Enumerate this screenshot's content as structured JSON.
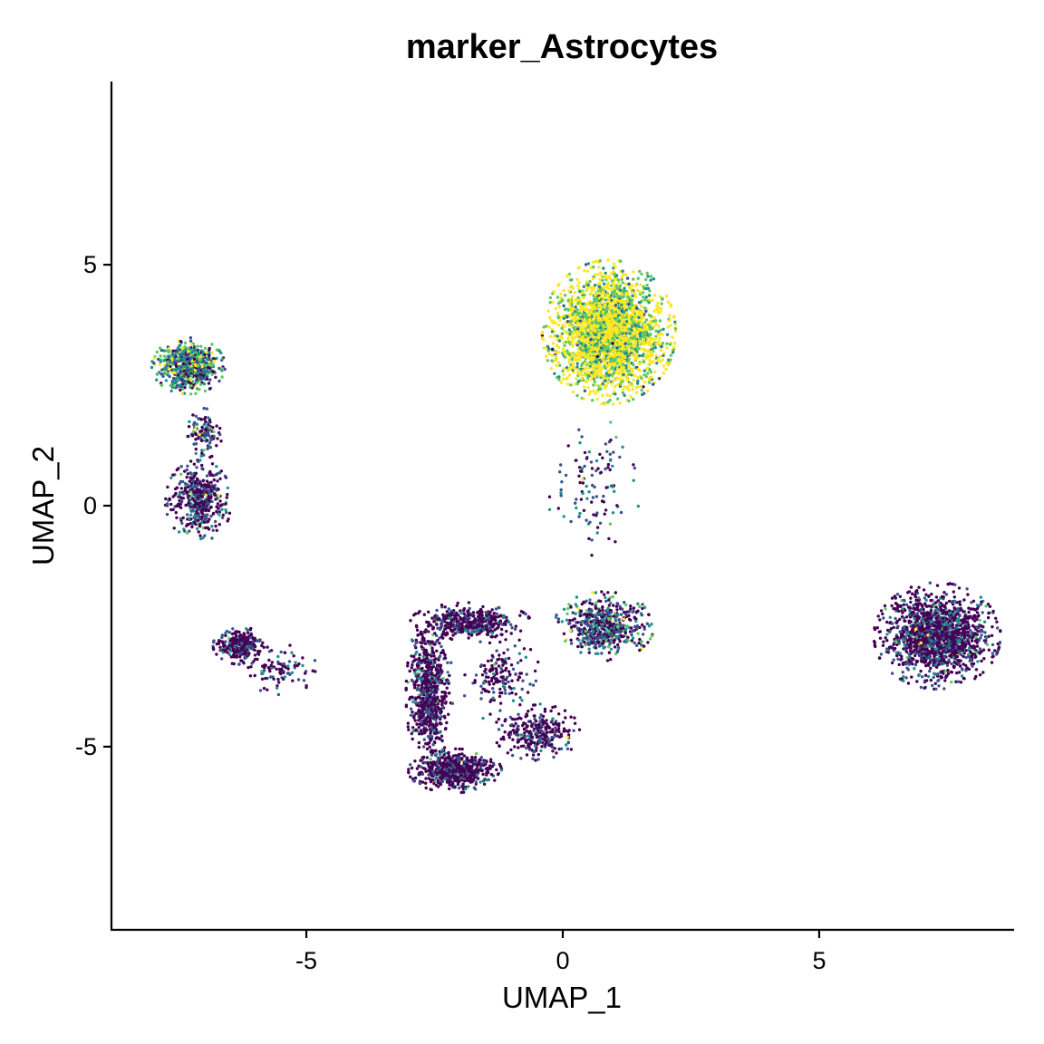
{
  "chart_data": {
    "type": "scatter",
    "title": "marker_Astrocytes",
    "xlabel": "UMAP_1",
    "ylabel": "UMAP_2",
    "xlim": [
      -8.8,
      8.8
    ],
    "ylim": [
      -8.8,
      8.8
    ],
    "x_ticks": [
      {
        "value": -5,
        "label": "-5"
      },
      {
        "value": 0,
        "label": "0"
      },
      {
        "value": 5,
        "label": "5"
      }
    ],
    "y_ticks": [
      {
        "value": 5,
        "label": "5"
      },
      {
        "value": 0,
        "label": "0"
      },
      {
        "value": -5,
        "label": "-5"
      }
    ],
    "grid": false,
    "legend": "none",
    "color_scale": "viridis",
    "palette": [
      "#440154",
      "#3b528b",
      "#21918c",
      "#5ec962",
      "#fde725"
    ],
    "clusters": [
      {
        "center": [
          0.9,
          3.6
        ],
        "spread": [
          1.0,
          1.15
        ],
        "n": 2600,
        "expression": 0.78
      },
      {
        "center": [
          -7.3,
          2.9
        ],
        "spread": [
          0.55,
          0.45
        ],
        "n": 700,
        "expression": 0.42
      },
      {
        "center": [
          -7.1,
          0.1
        ],
        "spread": [
          0.5,
          0.65
        ],
        "n": 450,
        "expression": 0.14
      },
      {
        "center": [
          -6.3,
          -2.9
        ],
        "spread": [
          0.4,
          0.3
        ],
        "n": 280,
        "expression": 0.08
      },
      {
        "center": [
          -5.5,
          -3.4
        ],
        "spread": [
          0.55,
          0.4
        ],
        "n": 90,
        "expression": 0.07
      },
      {
        "center": [
          7.3,
          -2.7
        ],
        "spread": [
          0.95,
          0.85
        ],
        "n": 1500,
        "expression": 0.1
      },
      {
        "center": [
          0.8,
          -2.5
        ],
        "spread": [
          0.75,
          0.55
        ],
        "n": 550,
        "expression": 0.25
      },
      {
        "center": [
          -2.6,
          -3.9
        ],
        "spread": [
          0.35,
          1.3
        ],
        "n": 700,
        "expression": 0.06
      },
      {
        "center": [
          -2.1,
          -5.5
        ],
        "spread": [
          0.7,
          0.35
        ],
        "n": 600,
        "expression": 0.05
      },
      {
        "center": [
          -1.8,
          -2.4
        ],
        "spread": [
          0.9,
          0.3
        ],
        "n": 420,
        "expression": 0.07
      },
      {
        "center": [
          -0.5,
          -4.7
        ],
        "spread": [
          0.65,
          0.45
        ],
        "n": 280,
        "expression": 0.07
      },
      {
        "center": [
          -1.2,
          -3.6
        ],
        "spread": [
          0.6,
          0.7
        ],
        "n": 160,
        "expression": 0.07
      },
      {
        "center": [
          0.6,
          0.4
        ],
        "spread": [
          0.7,
          1.1
        ],
        "n": 110,
        "expression": 0.2
      },
      {
        "center": [
          -7.0,
          1.5
        ],
        "spread": [
          0.3,
          0.4
        ],
        "n": 120,
        "expression": 0.2
      }
    ]
  }
}
